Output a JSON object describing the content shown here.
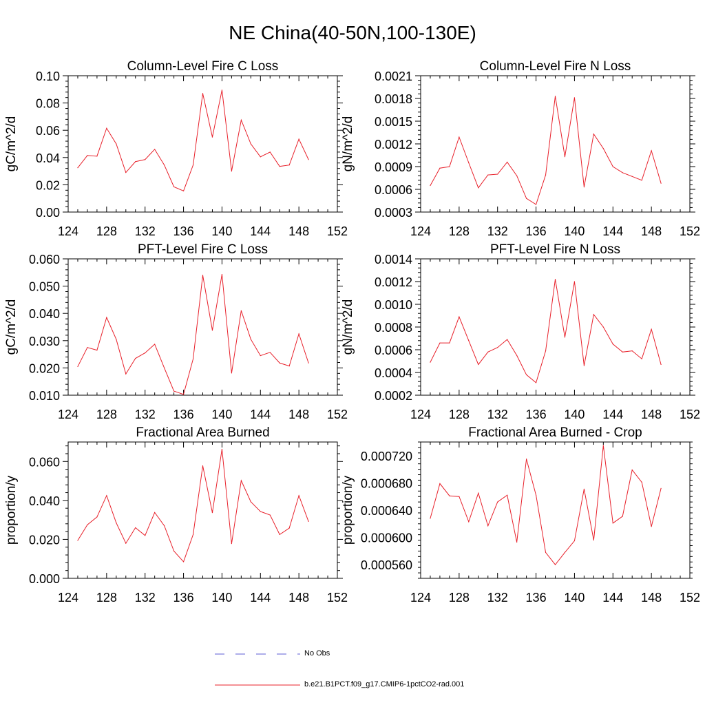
{
  "figure": {
    "title": "NE China(40-50N,100-130E)"
  },
  "legend": {
    "entries": [
      {
        "label": "No Obs",
        "color": "#5b5bd6",
        "style": "dashed"
      },
      {
        "label": "b.e21.B1PCT.f09_g17.CMIP6-1pctCO2-rad.001",
        "color": "#e8202a",
        "style": "solid"
      }
    ]
  },
  "chart_data": [
    {
      "type": "line",
      "title": "Column-Level Fire C Loss",
      "ylabel": "gC/m^2/d",
      "xlim": [
        124,
        152
      ],
      "ylim": [
        0.0,
        0.1
      ],
      "xticks": [
        "124",
        "128",
        "132",
        "136",
        "140",
        "144",
        "148",
        "152"
      ],
      "yticks": [
        "0.00",
        "0.02",
        "0.04",
        "0.06",
        "0.08",
        "0.10"
      ],
      "yticks_values": [
        0,
        0.02,
        0.04,
        0.06,
        0.08,
        0.1
      ],
      "x": [
        125,
        126,
        127,
        128,
        129,
        130,
        131,
        132,
        133,
        134,
        135,
        136,
        137,
        138,
        139,
        140,
        141,
        142,
        143,
        144,
        145,
        146,
        147,
        148,
        149
      ],
      "series": [
        {
          "values": [
            0.0325,
            0.0415,
            0.041,
            0.0615,
            0.05,
            0.029,
            0.037,
            0.0385,
            0.046,
            0.0345,
            0.0185,
            0.0155,
            0.0345,
            0.087,
            0.055,
            0.0895,
            0.03,
            0.0675,
            0.05,
            0.0405,
            0.044,
            0.0335,
            0.0345,
            0.0535,
            0.0385
          ]
        }
      ]
    },
    {
      "type": "line",
      "title": "Column-Level Fire N Loss",
      "ylabel": "gN/m^2/d",
      "xlim": [
        124,
        152
      ],
      "ylim": [
        0.0003,
        0.0021
      ],
      "xticks": [
        "124",
        "128",
        "132",
        "136",
        "140",
        "144",
        "148",
        "152"
      ],
      "yticks": [
        "0.0003",
        "0.0006",
        "0.0009",
        "0.0012",
        "0.0015",
        "0.0018",
        "0.0021"
      ],
      "yticks_values": [
        0.0003,
        0.0006,
        0.0009,
        0.0012,
        0.0015,
        0.0018,
        0.0021
      ],
      "x": [
        125,
        126,
        127,
        128,
        129,
        130,
        131,
        132,
        133,
        134,
        135,
        136,
        137,
        138,
        139,
        140,
        141,
        142,
        143,
        144,
        145,
        146,
        147,
        148,
        149
      ],
      "series": [
        {
          "values": [
            0.00065,
            0.00088,
            0.0009,
            0.00129,
            0.00095,
            0.00062,
            0.00079,
            0.0008,
            0.00096,
            0.00078,
            0.00048,
            0.0004,
            0.00079,
            0.00183,
            0.00103,
            0.00181,
            0.00063,
            0.00133,
            0.00114,
            0.0009,
            0.00082,
            0.00077,
            0.00072,
            0.00111,
            0.00068
          ]
        }
      ]
    },
    {
      "type": "line",
      "title": "PFT-Level Fire C Loss",
      "ylabel": "gC/m^2/d",
      "xlim": [
        124,
        152
      ],
      "ylim": [
        0.01,
        0.06
      ],
      "xticks": [
        "124",
        "128",
        "132",
        "136",
        "140",
        "144",
        "148",
        "152"
      ],
      "yticks": [
        "0.010",
        "0.020",
        "0.030",
        "0.040",
        "0.050",
        "0.060"
      ],
      "yticks_values": [
        0.01,
        0.02,
        0.03,
        0.04,
        0.05,
        0.06
      ],
      "x": [
        125,
        126,
        127,
        128,
        129,
        130,
        131,
        132,
        133,
        134,
        135,
        136,
        137,
        138,
        139,
        140,
        141,
        142,
        143,
        144,
        145,
        146,
        147,
        148,
        149
      ],
      "series": [
        {
          "values": [
            0.0205,
            0.0275,
            0.0265,
            0.0385,
            0.0305,
            0.0178,
            0.0235,
            0.0255,
            0.0287,
            0.02,
            0.0115,
            0.0103,
            0.0233,
            0.054,
            0.0338,
            0.0543,
            0.0181,
            0.041,
            0.0305,
            0.0245,
            0.0257,
            0.0218,
            0.0207,
            0.0325,
            0.0218
          ]
        }
      ]
    },
    {
      "type": "line",
      "title": "PFT-Level Fire N Loss",
      "ylabel": "gN/m^2/d",
      "xlim": [
        124,
        152
      ],
      "ylim": [
        0.0002,
        0.0014
      ],
      "xticks": [
        "124",
        "128",
        "132",
        "136",
        "140",
        "144",
        "148",
        "152"
      ],
      "yticks": [
        "0.0002",
        "0.0004",
        "0.0006",
        "0.0008",
        "0.0010",
        "0.0012",
        "0.0014"
      ],
      "yticks_values": [
        0.0002,
        0.0004,
        0.0006,
        0.0008,
        0.001,
        0.0012,
        0.0014
      ],
      "x": [
        125,
        126,
        127,
        128,
        129,
        130,
        131,
        132,
        133,
        134,
        135,
        136,
        137,
        138,
        139,
        140,
        141,
        142,
        143,
        144,
        145,
        146,
        147,
        148,
        149
      ],
      "series": [
        {
          "values": [
            0.00049,
            0.00066,
            0.00066,
            0.00089,
            0.00068,
            0.00047,
            0.00058,
            0.00062,
            0.00069,
            0.00055,
            0.00038,
            0.00031,
            0.00059,
            0.00122,
            0.00071,
            0.0012,
            0.00046,
            0.00091,
            0.0008,
            0.00065,
            0.00058,
            0.00059,
            0.00052,
            0.00078,
            0.00047
          ]
        }
      ]
    },
    {
      "type": "line",
      "title": "Fractional Area Burned",
      "ylabel": "proportion/y",
      "xlim": [
        124,
        152
      ],
      "ylim": [
        0.0,
        0.07
      ],
      "xticks": [
        "124",
        "128",
        "132",
        "136",
        "140",
        "144",
        "148",
        "152"
      ],
      "yticks": [
        "0.000",
        "0.020",
        "0.040",
        "0.060"
      ],
      "yticks_values": [
        0,
        0.02,
        0.04,
        0.06
      ],
      "x": [
        125,
        126,
        127,
        128,
        129,
        130,
        131,
        132,
        133,
        134,
        135,
        136,
        137,
        138,
        139,
        140,
        141,
        142,
        143,
        144,
        145,
        146,
        147,
        148,
        149
      ],
      "series": [
        {
          "values": [
            0.0195,
            0.0275,
            0.0315,
            0.0425,
            0.0285,
            0.018,
            0.026,
            0.022,
            0.0338,
            0.027,
            0.014,
            0.0085,
            0.0225,
            0.0578,
            0.0337,
            0.0663,
            0.0178,
            0.0502,
            0.0393,
            0.0343,
            0.0325,
            0.0225,
            0.0258,
            0.0425,
            0.0292
          ]
        }
      ]
    },
    {
      "type": "line",
      "title": "Fractional Area Burned - Crop",
      "ylabel": "proportion/y",
      "xlim": [
        124,
        152
      ],
      "ylim": [
        0.00054,
        0.00074
      ],
      "xticks": [
        "124",
        "128",
        "132",
        "136",
        "140",
        "144",
        "148",
        "152"
      ],
      "yticks": [
        "0.000560",
        "0.000600",
        "0.000640",
        "0.000680",
        "0.000720"
      ],
      "yticks_values": [
        0.00056,
        0.0006,
        0.00064,
        0.00068,
        0.00072
      ],
      "x": [
        125,
        126,
        127,
        128,
        129,
        130,
        131,
        132,
        133,
        134,
        135,
        136,
        137,
        138,
        139,
        140,
        141,
        142,
        143,
        144,
        145,
        146,
        147,
        148,
        149
      ],
      "series": [
        {
          "values": [
            0.000628,
            0.000679,
            0.000661,
            0.00066,
            0.000623,
            0.000665,
            0.000617,
            0.000652,
            0.000662,
            0.000593,
            0.000715,
            0.000662,
            0.000578,
            0.00056,
            0.000578,
            0.000595,
            0.000671,
            0.000596,
            0.000735,
            0.000621,
            0.000631,
            0.000699,
            0.000681,
            0.000616,
            0.000672
          ]
        }
      ]
    }
  ]
}
